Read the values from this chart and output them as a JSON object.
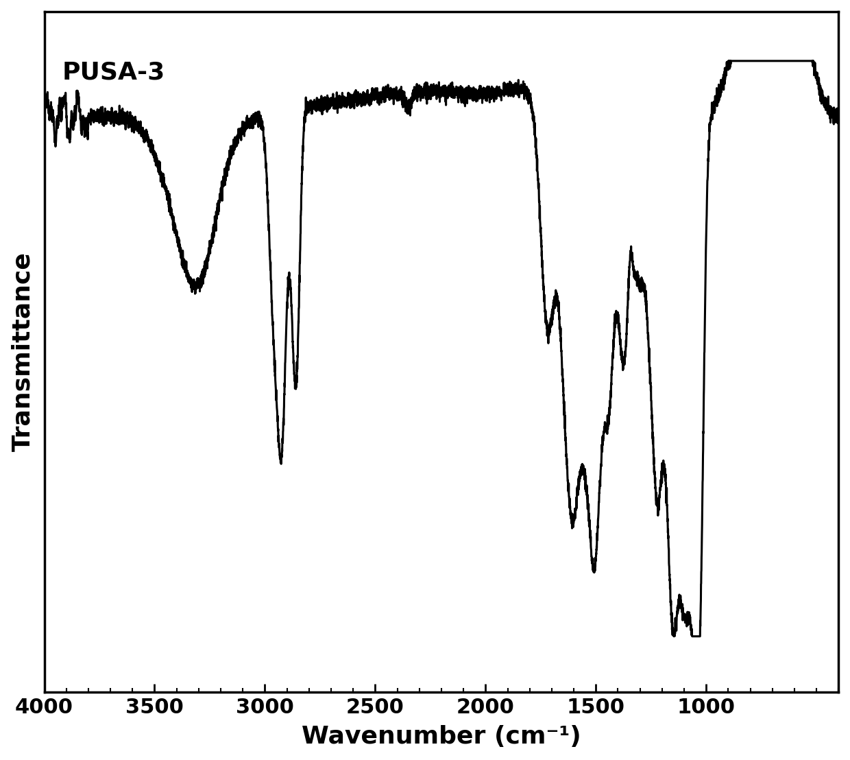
{
  "title": "PUSA-3",
  "xlabel": "Wavenumber (cm⁻¹)",
  "ylabel": "Transmittance",
  "xmin": 400,
  "xmax": 4000,
  "background_color": "#ffffff",
  "line_color": "#000000",
  "line_width": 2.2,
  "label_fontsize": 26,
  "title_fontsize": 26,
  "tick_fontsize": 22
}
